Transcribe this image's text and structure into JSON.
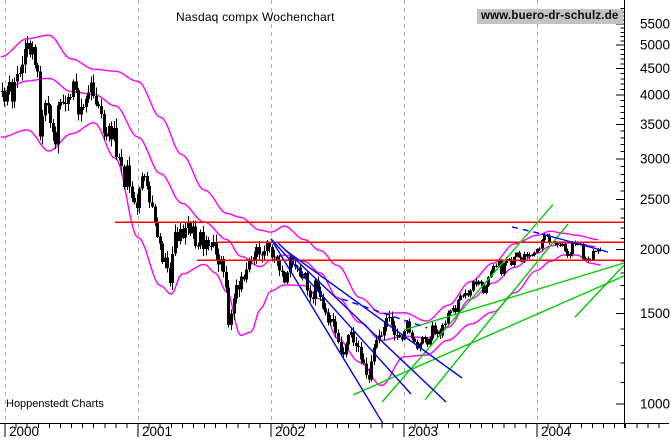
{
  "header": {
    "title": "Nasdaq compx Wochenchart",
    "watermark": "www.buero-dr-schulz.de"
  },
  "footer": {
    "credit": "Hoppenstedt Charts"
  },
  "colors": {
    "background": "#ffffff",
    "candle": "#000000",
    "bollinger": "#ff00ff",
    "level_line": "#ff0000",
    "trend_green": "#00cc00",
    "trend_blue": "#0000ee",
    "grid": "#b0b0b0",
    "axis": "#000000",
    "watermark_bg": "#c3c3c3"
  },
  "chart_data": {
    "type": "candlestick",
    "title": "Nasdaq compx Wochenchart",
    "instrument": "Nasdaq Composite",
    "timeframe": "weekly",
    "x_axis": {
      "tick_labels": [
        "2000",
        "2001",
        "2002",
        "2003",
        "2004"
      ],
      "gridline_years": [
        2000,
        2001,
        2002,
        2003,
        2004
      ],
      "minor_tick": "monthly",
      "range": [
        1999.96,
        2005.0
      ]
    },
    "y_axis": {
      "scale": "log",
      "side": "right",
      "major_ticks": [
        1000,
        1500,
        2000,
        2500,
        3000,
        3500,
        4000,
        4500,
        5000,
        5500
      ],
      "minor_tick_step": 100,
      "range": [
        980,
        5900
      ]
    },
    "grid": {
      "vertical_dashed": true,
      "horizontal": false
    },
    "series_start_year": 1999.975,
    "week_step_years": 0.019157,
    "closes_weekly": [
      4069,
      3882,
      4064,
      4235,
      3887,
      4244,
      4396,
      4411,
      4590,
      4914,
      5048,
      4798,
      4963,
      4573,
      4446,
      3321,
      3643,
      3861,
      3817,
      3529,
      3390,
      3205,
      3813,
      3875,
      3860,
      3845,
      3966,
      3960,
      4246,
      4094,
      3663,
      3787,
      3789,
      3930,
      4042,
      4234,
      3978,
      3835,
      3803,
      3672,
      3361,
      3316,
      3483,
      3278,
      3452,
      3028,
      3027,
      2904,
      2645,
      2917,
      2653,
      2517,
      2470,
      2407,
      2627,
      2771,
      2781,
      2660,
      2470,
      2426,
      2262,
      2117,
      2053,
      1890,
      1929,
      1840,
      1720,
      1961,
      2163,
      2075,
      2192,
      2107,
      2199,
      2251,
      2149,
      2215,
      2029,
      2035,
      2160,
      2004,
      2085,
      2029,
      2029,
      2066,
      1956,
      1867,
      1917,
      1805,
      1687,
      1423,
      1499,
      1605,
      1703,
      1671,
      1769,
      1746,
      1828,
      1899,
      1903,
      1931,
      2021,
      1953,
      1946,
      1987,
      2059,
      2022,
      1930,
      1937,
      1911,
      1818,
      1805,
      1724,
      1803,
      1930,
      1868,
      1851,
      1845,
      1770,
      1756,
      1797,
      1664,
      1613,
      1601,
      1741,
      1661,
      1616,
      1535,
      1505,
      1441,
      1463,
      1448,
      1373,
      1319,
      1262,
      1247,
      1306,
      1361,
      1380,
      1315,
      1295,
      1291,
      1221,
      1199,
      1139,
      1114,
      1210,
      1287,
      1331,
      1360,
      1359,
      1411,
      1469,
      1478,
      1422,
      1362,
      1363,
      1348,
      1335,
      1387,
      1447,
      1376,
      1342,
      1321,
      1282,
      1310,
      1349,
      1338,
      1305,
      1340,
      1421,
      1369,
      1383,
      1358,
      1425,
      1434,
      1502,
      1520,
      1538,
      1510,
      1595,
      1627,
      1626,
      1644,
      1625,
      1663,
      1733,
      1708,
      1730,
      1715,
      1644,
      1702,
      1765,
      1810,
      1858,
      1855,
      1905,
      1792,
      1880,
      1915,
      1912,
      1866,
      1932,
      1970,
      1930,
      1893,
      1960,
      1937,
      1949,
      1951,
      1973,
      2003,
      2007,
      2087,
      2140,
      2124,
      2066,
      2064,
      2054,
      2038,
      2030,
      2048,
      1985,
      1940,
      1960,
      2057,
      2052,
      2042,
      2050,
      1920,
      1918,
      1904,
      1912,
      1987,
      1979,
      1999,
      1986
    ],
    "weekly_range_eras": [
      [
        2001.0,
        0.042
      ],
      [
        2002.0,
        0.036
      ],
      [
        2002.95,
        0.03
      ],
      [
        2003.55,
        0.016
      ],
      [
        2004.6,
        0.012
      ]
    ],
    "bollinger_upper": [
      [
        1999.97,
        4750
      ],
      [
        2000.17,
        5150
      ],
      [
        2000.33,
        5230
      ],
      [
        2000.5,
        4700
      ],
      [
        2000.67,
        4490
      ],
      [
        2000.83,
        4450
      ],
      [
        2001.0,
        4250
      ],
      [
        2001.17,
        3620
      ],
      [
        2001.33,
        3060
      ],
      [
        2001.5,
        2610
      ],
      [
        2001.67,
        2350
      ],
      [
        2001.77,
        2310
      ],
      [
        2001.92,
        2180
      ],
      [
        2002.0,
        2160
      ],
      [
        2002.1,
        2220
      ],
      [
        2002.25,
        2090
      ],
      [
        2002.37,
        1990
      ],
      [
        2002.5,
        1860
      ],
      [
        2002.67,
        1610
      ],
      [
        2002.83,
        1500
      ],
      [
        2003.0,
        1505
      ],
      [
        2003.17,
        1450
      ],
      [
        2003.33,
        1555
      ],
      [
        2003.5,
        1730
      ],
      [
        2003.67,
        1880
      ],
      [
        2003.83,
        2050
      ],
      [
        2004.0,
        2130
      ],
      [
        2004.1,
        2170
      ],
      [
        2004.2,
        2150
      ],
      [
        2004.3,
        2130
      ],
      [
        2004.46,
        2090
      ]
    ],
    "bollinger_middle": [
      [
        1999.97,
        4060
      ],
      [
        2000.17,
        4260
      ],
      [
        2000.33,
        4310
      ],
      [
        2000.5,
        4060
      ],
      [
        2000.67,
        4010
      ],
      [
        2000.83,
        3810
      ],
      [
        2001.0,
        3310
      ],
      [
        2001.17,
        2810
      ],
      [
        2001.33,
        2460
      ],
      [
        2001.5,
        2260
      ],
      [
        2001.67,
        2090
      ],
      [
        2001.77,
        1940
      ],
      [
        2001.92,
        1850
      ],
      [
        2002.0,
        1905
      ],
      [
        2002.1,
        1950
      ],
      [
        2002.25,
        1895
      ],
      [
        2002.37,
        1800
      ],
      [
        2002.5,
        1610
      ],
      [
        2002.67,
        1440
      ],
      [
        2002.83,
        1330
      ],
      [
        2003.0,
        1355
      ],
      [
        2003.17,
        1345
      ],
      [
        2003.33,
        1410
      ],
      [
        2003.5,
        1600
      ],
      [
        2003.67,
        1720
      ],
      [
        2003.83,
        1845
      ],
      [
        2004.0,
        1965
      ],
      [
        2004.1,
        2030
      ],
      [
        2004.2,
        2060
      ],
      [
        2004.3,
        2055
      ],
      [
        2004.44,
        2025
      ]
    ],
    "bollinger_lower": [
      [
        1999.97,
        3310
      ],
      [
        2000.17,
        3420
      ],
      [
        2000.33,
        3110
      ],
      [
        2000.5,
        3360
      ],
      [
        2000.67,
        3530
      ],
      [
        2000.83,
        3010
      ],
      [
        2001.0,
        2110
      ],
      [
        2001.17,
        1700
      ],
      [
        2001.25,
        1635
      ],
      [
        2001.33,
        1790
      ],
      [
        2001.5,
        1870
      ],
      [
        2001.58,
        1800
      ],
      [
        2001.67,
        1650
      ],
      [
        2001.77,
        1360
      ],
      [
        2001.85,
        1380
      ],
      [
        2001.92,
        1530
      ],
      [
        2002.0,
        1660
      ],
      [
        2002.1,
        1705
      ],
      [
        2002.25,
        1700
      ],
      [
        2002.37,
        1600
      ],
      [
        2002.5,
        1340
      ],
      [
        2002.67,
        1205
      ],
      [
        2002.83,
        1085
      ],
      [
        2003.0,
        1235
      ],
      [
        2003.17,
        1245
      ],
      [
        2003.33,
        1330
      ],
      [
        2003.5,
        1430
      ],
      [
        2003.67,
        1510
      ],
      [
        2003.83,
        1645
      ],
      [
        2004.0,
        1820
      ],
      [
        2004.1,
        1895
      ],
      [
        2004.2,
        1950
      ],
      [
        2004.3,
        1950
      ],
      [
        2004.4,
        1880
      ],
      [
        2004.48,
        1865
      ]
    ],
    "horizontal_levels": [
      {
        "value": 2260,
        "from": 2000.827
      },
      {
        "value": 2065,
        "from": 2001.602
      },
      {
        "value": 1905,
        "from": 2001.444
      }
    ],
    "trendlines": [
      {
        "color": "green",
        "style": "solid",
        "from": [
          2002.835,
          1008
        ],
        "to": [
          2004.12,
          2445
        ]
      },
      {
        "color": "green",
        "style": "solid",
        "from": [
          2003.158,
          1018
        ],
        "to": [
          2004.233,
          2241
        ]
      },
      {
        "color": "green",
        "style": "solid",
        "from": [
          2002.617,
          1041
        ],
        "to": [
          2004.654,
          1775
        ]
      },
      {
        "color": "green",
        "style": "solid",
        "from": [
          2003.0,
          1393
        ],
        "to": [
          2004.654,
          1881
        ]
      },
      {
        "color": "green",
        "style": "solid",
        "from": [
          2004.286,
          1476
        ],
        "to": [
          2004.654,
          1864
        ]
      },
      {
        "color": "blue",
        "style": "solid",
        "from": [
          2002.0,
          2096
        ],
        "to": [
          2002.842,
          915
        ]
      },
      {
        "color": "blue",
        "style": "solid",
        "from": [
          2002.0,
          2096
        ],
        "to": [
          2003.053,
          1045
        ]
      },
      {
        "color": "blue",
        "style": "solid",
        "from": [
          2002.053,
          2058
        ],
        "to": [
          2003.316,
          1008
        ]
      },
      {
        "color": "blue",
        "style": "solid",
        "from": [
          2002.105,
          1995
        ],
        "to": [
          2003.436,
          1123
        ]
      },
      {
        "color": "blue",
        "style": "dashed",
        "from": [
          2002.534,
          1601
        ],
        "to": [
          2003.173,
          1406
        ]
      },
      {
        "color": "blue",
        "style": "dashed",
        "from": [
          2003.812,
          2212
        ],
        "to": [
          2004.038,
          2143
        ]
      },
      {
        "color": "blue",
        "style": "solid",
        "from": [
          2004.038,
          2143
        ],
        "to": [
          2004.534,
          1977
        ]
      }
    ]
  }
}
